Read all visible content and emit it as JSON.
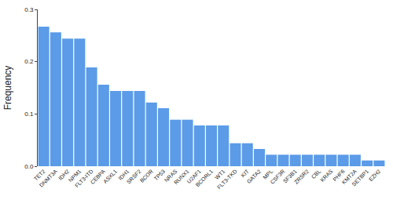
{
  "chart_data": {
    "type": "bar",
    "y_label": "Frequency",
    "categories": [
      "TET2",
      "DNMT3A",
      "IDH2",
      "NPM1",
      "FLT3-ITD",
      "CEBPA",
      "ASXL1",
      "IDH1",
      "SRSF2",
      "BCOR",
      "TP53",
      "NRAS",
      "RUNX1",
      "U2AF1",
      "BCORL1",
      "WT1",
      "FLT3-TKD",
      "KIT",
      "GATA2",
      "MPL",
      "CSF3R",
      "SF3B1",
      "ZRSR2",
      "CBL",
      "KRAS",
      "PHF6",
      "KMT2A",
      "SETBP1",
      "EZH2"
    ],
    "values": [
      0.267,
      0.256,
      0.244,
      0.244,
      0.189,
      0.156,
      0.144,
      0.144,
      0.144,
      0.122,
      0.111,
      0.089,
      0.089,
      0.078,
      0.078,
      0.078,
      0.044,
      0.044,
      0.033,
      0.022,
      0.022,
      0.022,
      0.022,
      0.022,
      0.022,
      0.022,
      0.022,
      0.011,
      0.011
    ],
    "color": "#5b9be8",
    "ylim": [
      0,
      0.3
    ],
    "yticks": [
      {
        "value": 0,
        "label": "0.0"
      },
      0.1,
      0.2,
      0.3
    ],
    "grid": false
  }
}
